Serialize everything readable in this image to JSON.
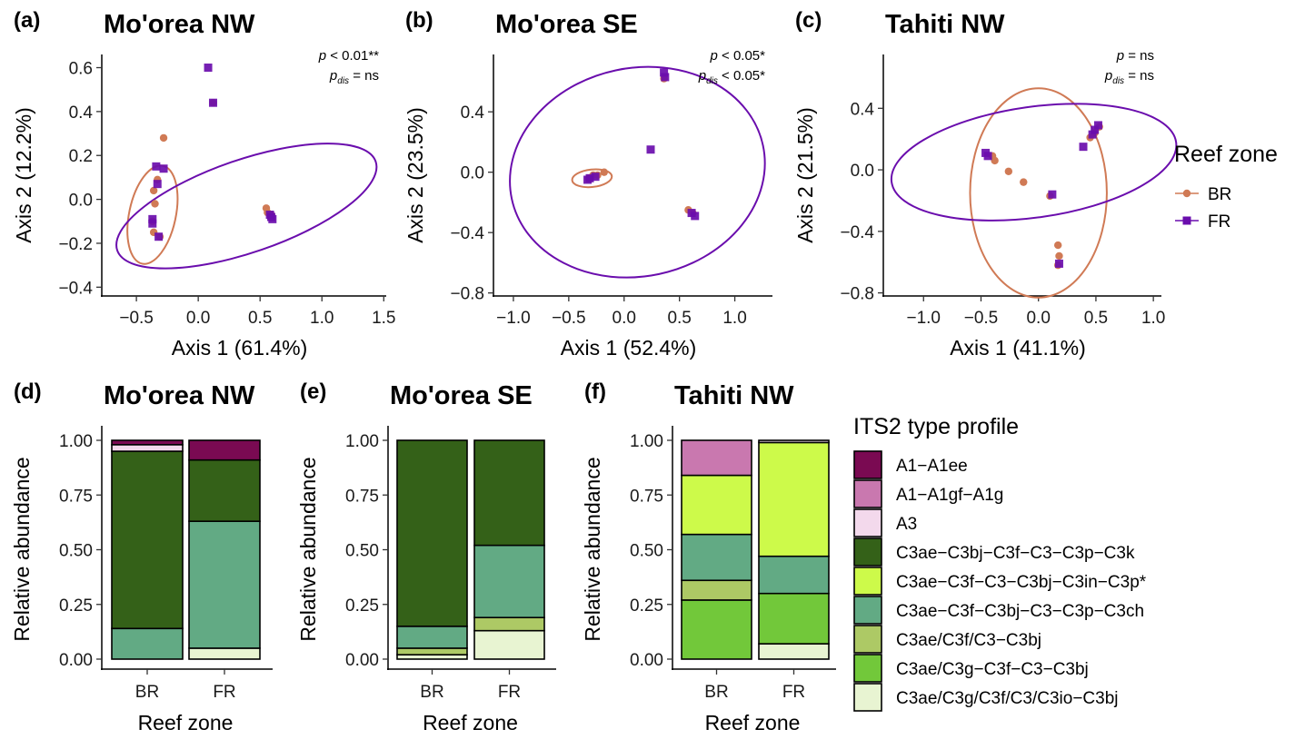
{
  "figure": {
    "legend_points": {
      "title": "Reef zone",
      "items": [
        {
          "label": "BR",
          "color": "#d07a55",
          "marker": "circle"
        },
        {
          "label": "FR",
          "color": "#6a0dad",
          "marker": "square"
        }
      ]
    },
    "legend_bars": {
      "title": "ITS2 type profile",
      "items": [
        {
          "label": "A1−A1ee",
          "color": "#7a0a52"
        },
        {
          "label": "A1−A1gf−A1g",
          "color": "#c978af"
        },
        {
          "label": "A3",
          "color": "#f3d9ec"
        },
        {
          "label": "C3ae−C3bj−C3f−C3−C3p−C3k",
          "color": "#346118"
        },
        {
          "label": "C3ae−C3f−C3−C3bj−C3in−C3p*",
          "color": "#cdfa4a"
        },
        {
          "label": "C3ae−C3f−C3bj−C3−C3p−C3ch",
          "color": "#62aa84"
        },
        {
          "label": "C3ae/C3f/C3−C3bj",
          "color": "#adc965"
        },
        {
          "label": "C3ae/C3g−C3f−C3−C3bj",
          "color": "#72c83a"
        },
        {
          "label": "C3ae/C3g/C3f/C3/C3io−C3bj",
          "color": "#e8f4d2"
        }
      ]
    }
  },
  "chart_data": [
    {
      "type": "scatter",
      "panel": "(a)",
      "title": "Mo'orea NW",
      "xlabel": "Axis 1 (61.4%)",
      "ylabel": "Axis 2 (12.2%)",
      "xlim": [
        -0.78,
        1.52
      ],
      "ylim": [
        -0.44,
        0.66
      ],
      "xticks": [
        -0.5,
        0.0,
        0.5,
        1.0,
        1.5
      ],
      "xtick_labels": [
        "−0.5",
        "0.0",
        "0.5",
        "1.0",
        "1.5"
      ],
      "yticks": [
        -0.4,
        -0.2,
        0.0,
        0.2,
        0.4,
        0.6
      ],
      "ytick_labels": [
        "−0.4",
        "−0.2",
        "0.0",
        "0.2",
        "0.4",
        "0.6"
      ],
      "stats": {
        "p": "< 0.01**",
        "p_dis": "= ns"
      },
      "series": [
        {
          "name": "BR",
          "points": [
            [
              -0.28,
              0.28
            ],
            [
              -0.33,
              0.09
            ],
            [
              -0.36,
              0.04
            ],
            [
              -0.35,
              -0.02
            ],
            [
              -0.37,
              -0.1
            ],
            [
              -0.36,
              -0.15
            ],
            [
              -0.31,
              -0.17
            ],
            [
              0.12,
              0.44
            ],
            [
              0.55,
              -0.04
            ],
            [
              0.56,
              -0.06
            ],
            [
              0.59,
              -0.07
            ]
          ]
        },
        {
          "name": "FR",
          "points": [
            [
              0.08,
              0.6
            ],
            [
              0.12,
              0.44
            ],
            [
              -0.34,
              0.15
            ],
            [
              -0.28,
              0.14
            ],
            [
              -0.33,
              0.07
            ],
            [
              -0.37,
              -0.09
            ],
            [
              -0.37,
              -0.11
            ],
            [
              -0.32,
              -0.17
            ],
            [
              0.58,
              -0.07
            ],
            [
              0.59,
              -0.08
            ],
            [
              0.6,
              -0.09
            ]
          ]
        }
      ],
      "ellipses": [
        {
          "series": "BR",
          "center": [
            -0.37,
            -0.07
          ],
          "rx": 0.405,
          "ry": 0.106,
          "angle": -78
        },
        {
          "series": "FR",
          "center": [
            0.39,
            -0.03
          ],
          "rx": 1.105,
          "ry": 0.211,
          "angle": -19
        }
      ]
    },
    {
      "type": "scatter",
      "panel": "(b)",
      "title": "Mo'orea SE",
      "xlabel": "Axis 1 (52.4%)",
      "ylabel": "Axis 2 (23.5%)",
      "xlim": [
        -1.18,
        1.34
      ],
      "ylim": [
        -0.82,
        0.78
      ],
      "xticks": [
        -1.0,
        -0.5,
        0.0,
        0.5,
        1.0
      ],
      "xtick_labels": [
        "−1.0",
        "−0.5",
        "0.0",
        "0.5",
        "1.0"
      ],
      "yticks": [
        -0.8,
        -0.4,
        0.0,
        0.4
      ],
      "ytick_labels": [
        "−0.8",
        "−0.4",
        "0.0",
        "0.4"
      ],
      "stats": {
        "p": "< 0.05*",
        "p_dis": "< 0.05*"
      },
      "series": [
        {
          "name": "BR",
          "points": [
            [
              -0.18,
              0.0
            ],
            [
              -0.24,
              -0.02
            ],
            [
              -0.28,
              -0.02
            ],
            [
              -0.32,
              -0.04
            ],
            [
              0.36,
              0.62
            ],
            [
              0.58,
              -0.25
            ],
            [
              0.62,
              -0.27
            ]
          ]
        },
        {
          "name": "FR",
          "points": [
            [
              0.36,
              0.66
            ],
            [
              0.37,
              0.63
            ],
            [
              0.24,
              0.15
            ],
            [
              -0.26,
              -0.03
            ],
            [
              -0.31,
              -0.04
            ],
            [
              -0.33,
              -0.05
            ],
            [
              0.61,
              -0.27
            ],
            [
              0.64,
              -0.29
            ]
          ]
        }
      ],
      "ellipses": [
        {
          "series": "BR",
          "center": [
            -0.29,
            -0.04
          ],
          "rx": 0.18,
          "ry": 0.058,
          "angle": -6
        },
        {
          "series": "FR",
          "center": [
            0.12,
            0.0
          ],
          "rx": 1.16,
          "ry": 0.69,
          "angle": -12
        }
      ]
    },
    {
      "type": "scatter",
      "panel": "(c)",
      "title": "Tahiti NW",
      "xlabel": "Axis 1 (41.1%)",
      "ylabel": "Axis 2 (21.5%)",
      "xlim": [
        -1.35,
        1.07
      ],
      "ylim": [
        -0.82,
        0.75
      ],
      "xticks": [
        -1.0,
        -0.5,
        0.0,
        0.5,
        1.0
      ],
      "xtick_labels": [
        "−1.0",
        "−0.5",
        "0.0",
        "0.5",
        "1.0"
      ],
      "yticks": [
        -0.8,
        -0.4,
        0.0,
        0.4
      ],
      "ytick_labels": [
        "−0.8",
        "−0.4",
        "0.0",
        "0.4"
      ],
      "stats": {
        "p": " = ns",
        "p_dis": "= ns"
      },
      "series": [
        {
          "name": "BR",
          "points": [
            [
              -0.4,
              0.09
            ],
            [
              -0.38,
              0.06
            ],
            [
              -0.26,
              -0.01
            ],
            [
              -0.13,
              -0.08
            ],
            [
              0.1,
              -0.17
            ],
            [
              0.17,
              -0.49
            ],
            [
              0.18,
              -0.56
            ],
            [
              0.17,
              -0.62
            ],
            [
              0.45,
              0.21
            ],
            [
              0.49,
              0.24
            ],
            [
              0.53,
              0.28
            ]
          ]
        },
        {
          "name": "FR",
          "points": [
            [
              -0.46,
              0.11
            ],
            [
              -0.44,
              0.09
            ],
            [
              0.12,
              -0.16
            ],
            [
              0.18,
              -0.61
            ],
            [
              0.39,
              0.15
            ],
            [
              0.47,
              0.23
            ],
            [
              0.49,
              0.26
            ],
            [
              0.52,
              0.29
            ]
          ]
        }
      ],
      "ellipses": [
        {
          "series": "BR",
          "center": [
            0.0,
            -0.15
          ],
          "rx": 0.595,
          "ry": 0.68,
          "angle": 0
        },
        {
          "series": "FR",
          "center": [
            -0.04,
            0.05
          ],
          "rx": 1.25,
          "ry": 0.36,
          "angle": -8
        }
      ]
    },
    {
      "type": "bar",
      "stacked": true,
      "panel": "(d)",
      "title": "Mo'orea NW",
      "xlabel": "Reef zone",
      "ylabel": "Relative abundance",
      "ylim": [
        0,
        1
      ],
      "yticks": [
        0,
        0.25,
        0.5,
        0.75,
        1.0
      ],
      "ytick_labels": [
        "0.00",
        "0.25",
        "0.50",
        "0.75",
        "1.00"
      ],
      "categories": [
        "BR",
        "FR"
      ],
      "series": [
        {
          "name": "C3ae/C3g/C3f/C3/C3io−C3bj",
          "values": [
            0.0,
            0.05
          ]
        },
        {
          "name": "C3ae−C3f−C3bj−C3−C3p−C3ch",
          "values": [
            0.14,
            0.58
          ]
        },
        {
          "name": "C3ae−C3bj−C3f−C3−C3p−C3k",
          "values": [
            0.81,
            0.28
          ]
        },
        {
          "name": "A3",
          "values": [
            0.03,
            0.0
          ]
        },
        {
          "name": "A1−A1ee",
          "values": [
            0.02,
            0.09
          ]
        }
      ]
    },
    {
      "type": "bar",
      "stacked": true,
      "panel": "(e)",
      "title": "Mo'orea SE",
      "xlabel": "Reef zone",
      "ylabel": "Relative abundance",
      "ylim": [
        0,
        1
      ],
      "yticks": [
        0,
        0.25,
        0.5,
        0.75,
        1.0
      ],
      "ytick_labels": [
        "0.00",
        "0.25",
        "0.50",
        "0.75",
        "1.00"
      ],
      "categories": [
        "BR",
        "FR"
      ],
      "series": [
        {
          "name": "C3ae/C3g/C3f/C3/C3io−C3bj",
          "values": [
            0.02,
            0.13
          ]
        },
        {
          "name": "C3ae/C3f/C3−C3bj",
          "values": [
            0.03,
            0.06
          ]
        },
        {
          "name": "C3ae−C3f−C3bj−C3−C3p−C3ch",
          "values": [
            0.1,
            0.33
          ]
        },
        {
          "name": "C3ae−C3bj−C3f−C3−C3p−C3k",
          "values": [
            0.85,
            0.48
          ]
        }
      ]
    },
    {
      "type": "bar",
      "stacked": true,
      "panel": "(f)",
      "title": "Tahiti NW",
      "xlabel": "Reef zone",
      "ylabel": "Relative abundance",
      "ylim": [
        0,
        1
      ],
      "yticks": [
        0,
        0.25,
        0.5,
        0.75,
        1.0
      ],
      "ytick_labels": [
        "0.00",
        "0.25",
        "0.50",
        "0.75",
        "1.00"
      ],
      "categories": [
        "BR",
        "FR"
      ],
      "series": [
        {
          "name": "C3ae/C3g/C3f/C3/C3io−C3bj",
          "values": [
            0.0,
            0.07
          ]
        },
        {
          "name": "C3ae/C3g−C3f−C3−C3bj",
          "values": [
            0.27,
            0.23
          ]
        },
        {
          "name": "C3ae/C3f/C3−C3bj",
          "values": [
            0.09,
            0.0
          ]
        },
        {
          "name": "C3ae−C3f−C3bj−C3−C3p−C3ch",
          "values": [
            0.21,
            0.17
          ]
        },
        {
          "name": "C3ae−C3f−C3−C3bj−C3in−C3p*",
          "values": [
            0.27,
            0.52
          ]
        },
        {
          "name": "A1−A1gf−A1g",
          "values": [
            0.16,
            0.0
          ]
        },
        {
          "name": "A3",
          "values": [
            0.0,
            0.01
          ]
        }
      ]
    }
  ]
}
